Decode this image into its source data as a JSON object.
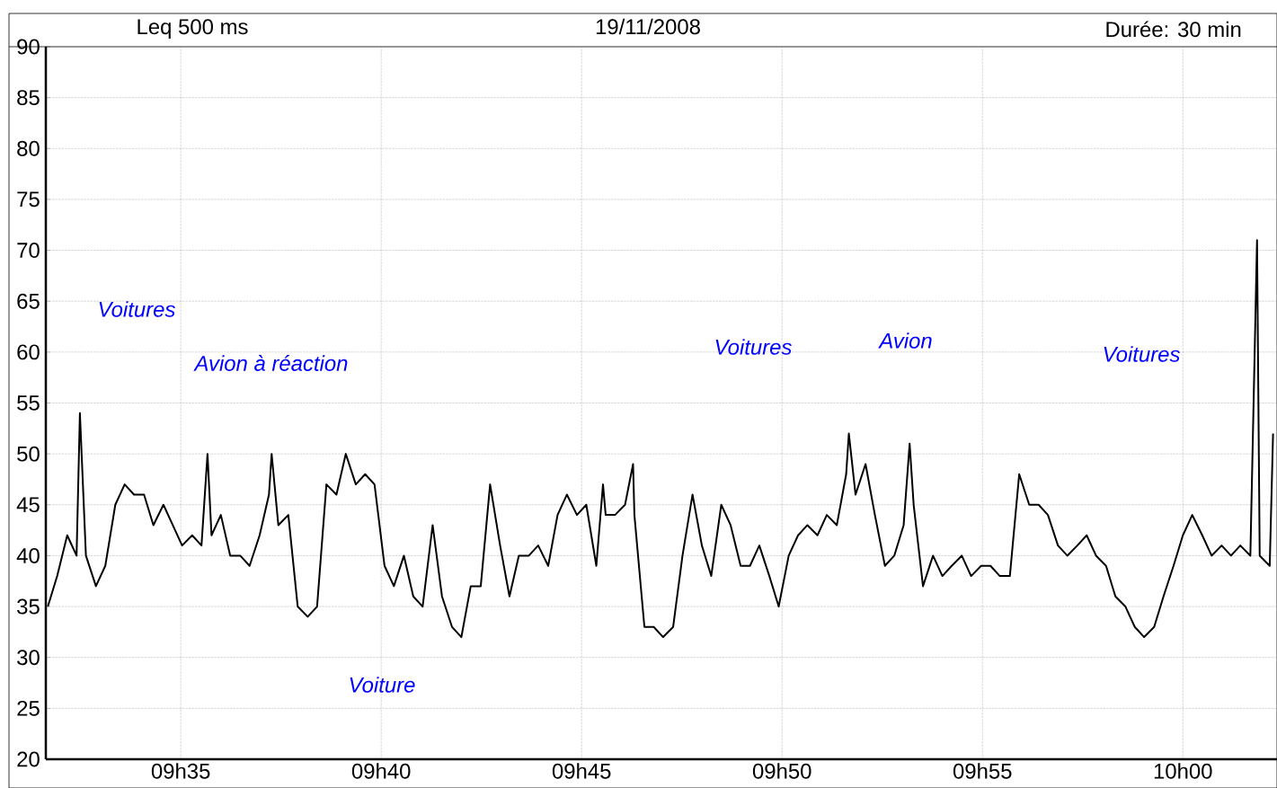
{
  "chart_data": {
    "type": "line",
    "title": "Leq 500 ms",
    "subtitle": "19/11/2008",
    "annotations": [
      "Durée: 30 min",
      "Voitures",
      "Avion à réaction",
      "Voiture",
      "Voitures",
      "Avion",
      "Voitures"
    ],
    "x": [
      "2008-11-19T09:31:41",
      "2008-11-19T09:31:55",
      "2008-11-19T09:32:10",
      "2008-11-19T09:32:24",
      "2008-11-19T09:32:29",
      "2008-11-19T09:32:38",
      "2008-11-19T09:32:53",
      "2008-11-19T09:33:07",
      "2008-11-19T09:33:22",
      "2008-11-19T09:33:36",
      "2008-11-19T09:33:50",
      "2008-11-19T09:34:05",
      "2008-11-19T09:34:19",
      "2008-11-19T09:34:34",
      "2008-11-19T09:34:48",
      "2008-11-19T09:35:02",
      "2008-11-19T09:35:17",
      "2008-11-19T09:35:31",
      "2008-11-19T09:35:40",
      "2008-11-19T09:35:46",
      "2008-11-19T09:36:00",
      "2008-11-19T09:36:14",
      "2008-11-19T09:36:29",
      "2008-11-19T09:36:43",
      "2008-11-19T09:36:58",
      "2008-11-19T09:37:12",
      "2008-11-19T09:37:16",
      "2008-11-19T09:37:26",
      "2008-11-19T09:37:41",
      "2008-11-19T09:37:55",
      "2008-11-19T09:38:10",
      "2008-11-19T09:38:24",
      "2008-11-19T09:38:38",
      "2008-11-19T09:38:53",
      "2008-11-19T09:39:07",
      "2008-11-19T09:39:22",
      "2008-11-19T09:39:36",
      "2008-11-19T09:39:50",
      "2008-11-19T09:40:05",
      "2008-11-19T09:40:19",
      "2008-11-19T09:40:34",
      "2008-11-19T09:40:48",
      "2008-11-19T09:41:02",
      "2008-11-19T09:41:17",
      "2008-11-19T09:41:31",
      "2008-11-19T09:41:46",
      "2008-11-19T09:42:00",
      "2008-11-19T09:42:14",
      "2008-11-19T09:42:29",
      "2008-11-19T09:42:43",
      "2008-11-19T09:42:58",
      "2008-11-19T09:43:12",
      "2008-11-19T09:43:26",
      "2008-11-19T09:43:41",
      "2008-11-19T09:43:55",
      "2008-11-19T09:44:10",
      "2008-11-19T09:44:24",
      "2008-11-19T09:44:38",
      "2008-11-19T09:44:53",
      "2008-11-19T09:45:07",
      "2008-11-19T09:45:22",
      "2008-11-19T09:45:32",
      "2008-11-19T09:45:36",
      "2008-11-19T09:45:50",
      "2008-11-19T09:46:05",
      "2008-11-19T09:46:17",
      "2008-11-19T09:46:19",
      "2008-11-19T09:46:34",
      "2008-11-19T09:46:48",
      "2008-11-19T09:47:02",
      "2008-11-19T09:47:17",
      "2008-11-19T09:47:31",
      "2008-11-19T09:47:46",
      "2008-11-19T09:48:00",
      "2008-11-19T09:48:14",
      "2008-11-19T09:48:29",
      "2008-11-19T09:48:43",
      "2008-11-19T09:48:58",
      "2008-11-19T09:49:12",
      "2008-11-19T09:49:26",
      "2008-11-19T09:49:41",
      "2008-11-19T09:49:55",
      "2008-11-19T09:50:10",
      "2008-11-19T09:50:24",
      "2008-11-19T09:50:38",
      "2008-11-19T09:50:53",
      "2008-11-19T09:51:07",
      "2008-11-19T09:51:22",
      "2008-11-19T09:51:36",
      "2008-11-19T09:51:40",
      "2008-11-19T09:51:50",
      "2008-11-19T09:52:05",
      "2008-11-19T09:52:19",
      "2008-11-19T09:52:34",
      "2008-11-19T09:52:48",
      "2008-11-19T09:53:02",
      "2008-11-19T09:53:11",
      "2008-11-19T09:53:17",
      "2008-11-19T09:53:31",
      "2008-11-19T09:53:46",
      "2008-11-19T09:54:00",
      "2008-11-19T09:54:14",
      "2008-11-19T09:54:29",
      "2008-11-19T09:54:43",
      "2008-11-19T09:54:58",
      "2008-11-19T09:55:12",
      "2008-11-19T09:55:26",
      "2008-11-19T09:55:41",
      "2008-11-19T09:55:55",
      "2008-11-19T09:56:10",
      "2008-11-19T09:56:24",
      "2008-11-19T09:56:38",
      "2008-11-19T09:56:53",
      "2008-11-19T09:57:07",
      "2008-11-19T09:57:22",
      "2008-11-19T09:57:36",
      "2008-11-19T09:57:50",
      "2008-11-19T09:58:05",
      "2008-11-19T09:58:19",
      "2008-11-19T09:58:34",
      "2008-11-19T09:58:48",
      "2008-11-19T09:59:02",
      "2008-11-19T09:59:17",
      "2008-11-19T09:59:31",
      "2008-11-19T09:59:46",
      "2008-11-19T10:00:00",
      "2008-11-19T10:00:14",
      "2008-11-19T10:00:29",
      "2008-11-19T10:00:43",
      "2008-11-19T10:00:58",
      "2008-11-19T10:01:12",
      "2008-11-19T10:01:26",
      "2008-11-19T10:01:41",
      "2008-11-19T10:01:51",
      "2008-11-19T10:01:55",
      "2008-11-19T10:02:10",
      "2008-11-19T10:02:15"
    ],
    "series": [
      {
        "color": "#000000",
        "values": [
          35,
          38,
          42,
          40,
          54,
          40,
          37,
          39,
          45,
          47,
          46,
          46,
          43,
          45,
          43,
          41,
          42,
          41,
          50,
          42,
          44,
          40,
          40,
          39,
          42,
          46,
          50,
          43,
          44,
          35,
          34,
          35,
          47,
          46,
          50,
          47,
          48,
          47,
          39,
          37,
          40,
          36,
          35,
          43,
          36,
          33,
          32,
          37,
          37,
          47,
          41,
          36,
          40,
          40,
          41,
          39,
          44,
          46,
          44,
          45,
          39,
          47,
          44,
          44,
          45,
          49,
          44,
          33,
          33,
          32,
          33,
          40,
          46,
          41,
          38,
          45,
          43,
          39,
          39,
          41,
          38,
          35,
          40,
          42,
          43,
          42,
          44,
          43,
          48,
          52,
          46,
          49,
          44,
          39,
          40,
          43,
          51,
          45,
          37,
          40,
          38,
          39,
          40,
          38,
          39,
          39,
          38,
          38,
          48,
          45,
          45,
          44,
          41,
          40,
          41,
          42,
          40,
          39,
          36,
          35,
          33,
          32,
          33,
          36,
          39,
          42,
          44,
          42,
          40,
          41,
          40,
          41,
          40,
          71,
          40,
          39,
          52
        ]
      }
    ],
    "xlim": [
      "2008-11-19T09:31:38",
      "2008-11-19T10:02:21"
    ],
    "ylim": [
      20,
      90
    ],
    "xticks": [
      {
        "value": "2008-11-19T09:35",
        "label": "09h35"
      },
      {
        "value": "2008-11-19T09:40",
        "label": "09h40"
      },
      {
        "value": "2008-11-19T09:45",
        "label": "09h45"
      },
      {
        "value": "2008-11-19T09:50",
        "label": "09h50"
      },
      {
        "value": "2008-11-19T09:55",
        "label": "09h55"
      },
      {
        "value": "2008-11-19T10:00",
        "label": "10h00"
      }
    ],
    "yticks": [
      20,
      25,
      30,
      35,
      40,
      45,
      50,
      55,
      60,
      65,
      70,
      75,
      80,
      85,
      90
    ],
    "grid": true,
    "marker": "none",
    "line_style": "solid"
  }
}
